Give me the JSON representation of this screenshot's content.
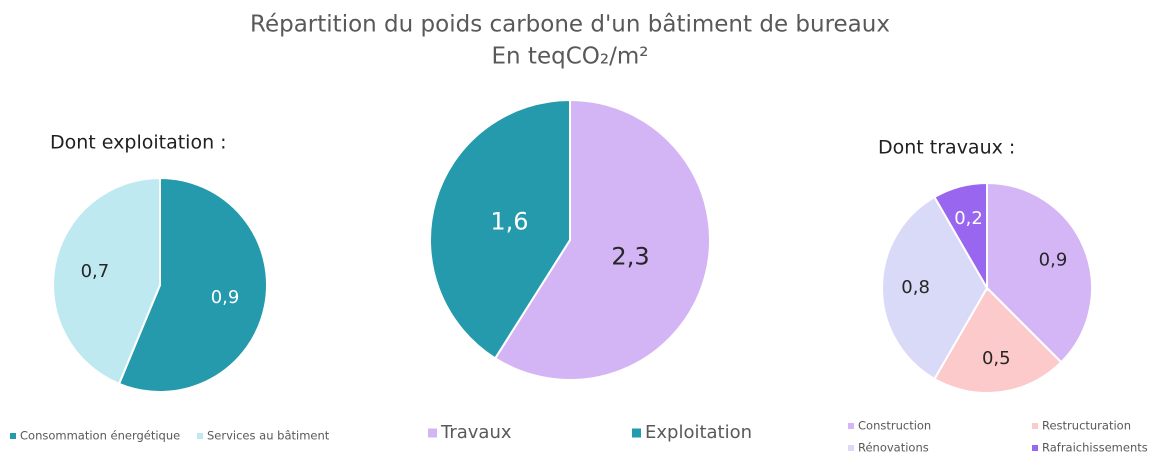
{
  "title": "Répartition du poids carbone d'un bâtiment de bureaux",
  "subtitle": "En teqCO₂/m²",
  "chart_data": [
    {
      "type": "pie",
      "title": "Dont exploitation :",
      "categories": [
        "Consommation énergétique",
        "Services au bâtiment"
      ],
      "values": [
        0.9,
        0.7
      ],
      "value_labels": [
        "0,9",
        "0,7"
      ],
      "colors": [
        "#259aac",
        "#bfe9f0"
      ]
    },
    {
      "type": "pie",
      "categories": [
        "Travaux",
        "Exploitation"
      ],
      "values": [
        2.3,
        1.6
      ],
      "value_labels": [
        "2,3",
        "1,6"
      ],
      "colors": [
        "#d3b5f5",
        "#259aac"
      ]
    },
    {
      "type": "pie",
      "title": "Dont travaux :",
      "categories": [
        "Construction",
        "Restructuration",
        "Rénovations",
        "Rafraichissements"
      ],
      "values": [
        0.9,
        0.5,
        0.8,
        0.2
      ],
      "value_labels": [
        "0,9",
        "0,5",
        "0,8",
        "0,2"
      ],
      "colors": [
        "#d4b6f6",
        "#fccaca",
        "#d9d9f8",
        "#9966f0"
      ]
    }
  ]
}
